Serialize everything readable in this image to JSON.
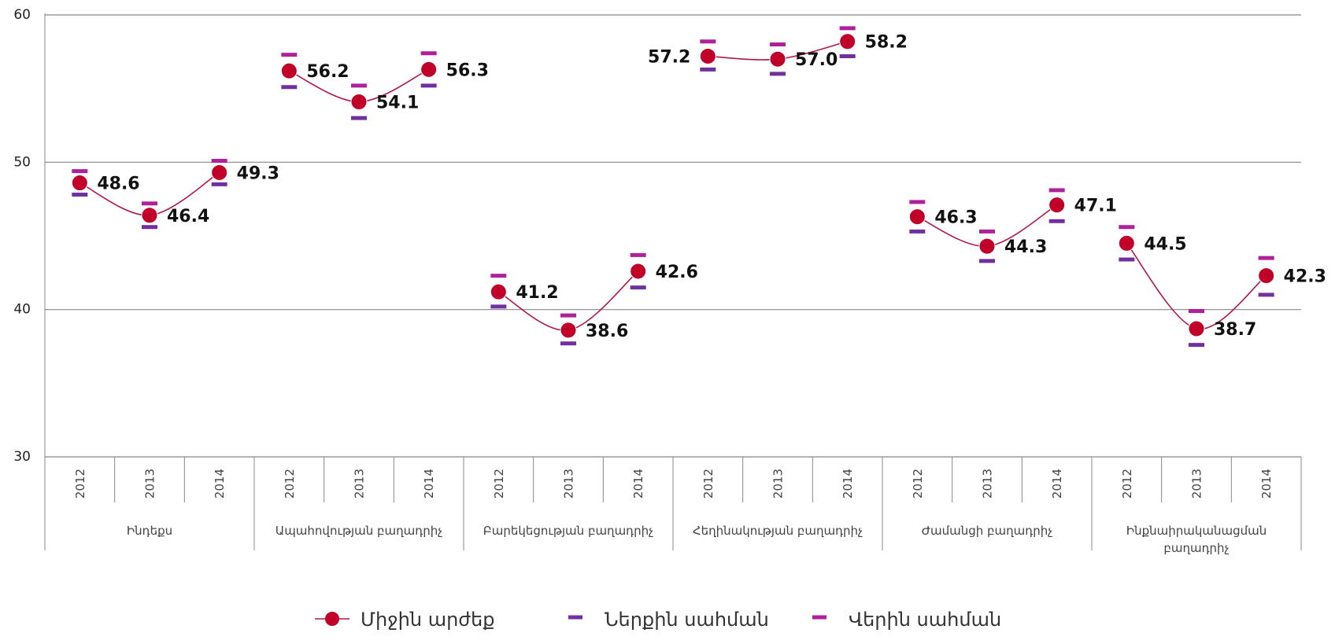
{
  "chart_data": {
    "type": "line",
    "categories": [
      "2012",
      "2013",
      "2014",
      "2012",
      "2013",
      "2014",
      "2012",
      "2013",
      "2014",
      "2012",
      "2013",
      "2014",
      "2012",
      "2013",
      "2014",
      "2012",
      "2013",
      "2014"
    ],
    "groups": [
      "Ինդեքս",
      "Ապահովության բաղադրիչ",
      "Բարեկեցության բաղադրիչ",
      "Հեղինակության բաղադրիչ",
      "Ժամանցի բաղադրիչ",
      "Ինքնաիրականացման բաղադրիչ"
    ],
    "series": [
      {
        "name": "Միջին արժեք",
        "color": "#c00028",
        "line_color": "#b0174a",
        "values": [
          48.6,
          46.4,
          49.3,
          56.2,
          54.1,
          56.3,
          41.2,
          38.6,
          42.6,
          57.2,
          57.0,
          58.2,
          46.3,
          44.3,
          47.1,
          44.5,
          38.7,
          42.3
        ],
        "value_labels": [
          "48.6",
          "46.4",
          "49.3",
          "56.2",
          "54.1",
          "56.3",
          "41.2",
          "38.6",
          "42.6",
          "57.2",
          "57.0",
          "58.2",
          "46.3",
          "44.3",
          "47.1",
          "44.5",
          "38.7",
          "42.3"
        ]
      },
      {
        "name": "Ներքին սահման",
        "color": "#7030a0",
        "values": [
          47.8,
          45.6,
          48.5,
          55.1,
          53.0,
          55.2,
          40.2,
          37.7,
          41.5,
          56.3,
          56.0,
          57.2,
          45.3,
          43.3,
          46.0,
          43.4,
          37.6,
          41.0
        ]
      },
      {
        "name": "Վերին սահման",
        "color": "#b0209a",
        "values": [
          49.4,
          47.2,
          50.1,
          57.3,
          55.2,
          57.4,
          42.3,
          39.6,
          43.7,
          58.2,
          58.0,
          59.1,
          47.3,
          45.3,
          48.1,
          45.6,
          39.9,
          43.5
        ]
      }
    ],
    "ylim": [
      30,
      60
    ],
    "yticks": [
      30,
      40,
      50,
      60
    ],
    "grid": true
  }
}
